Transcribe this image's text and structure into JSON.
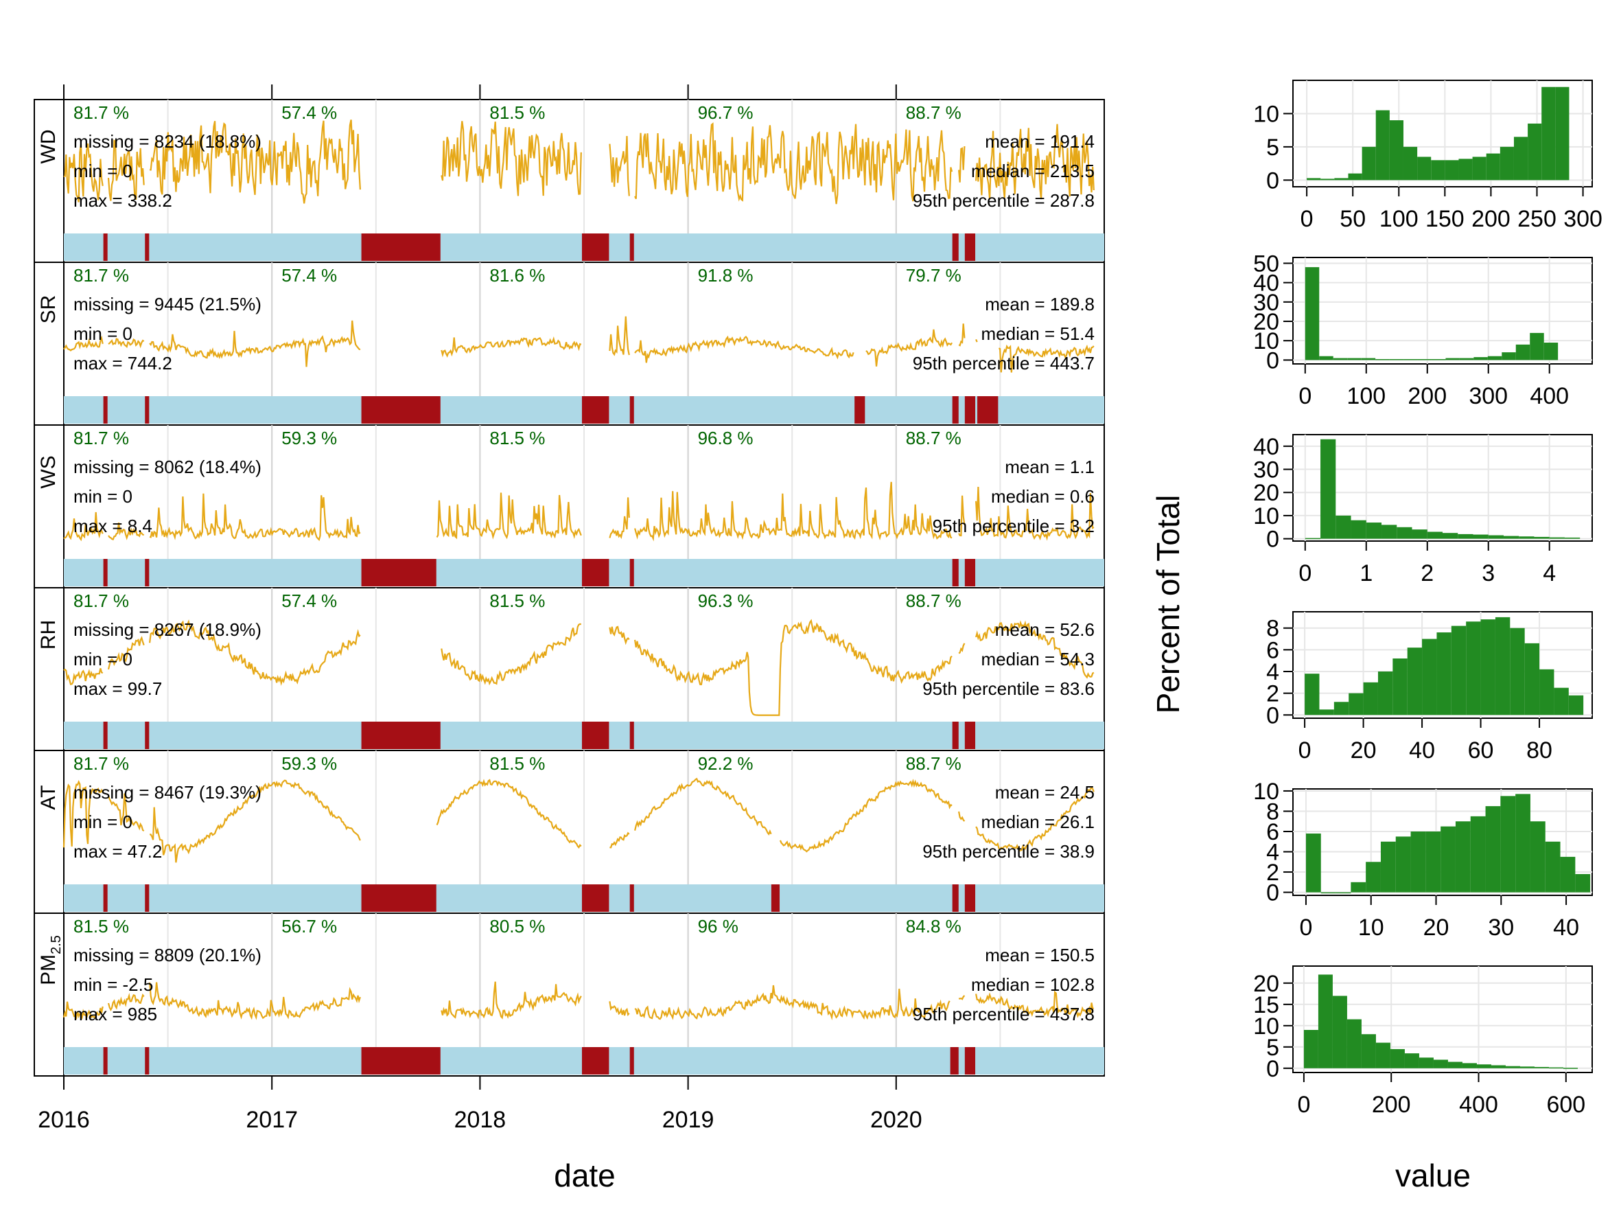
{
  "chart_data": {
    "type": "summary-plot",
    "left": {
      "x_ticks": [
        "2016",
        "2017",
        "2018",
        "2019",
        "2020"
      ],
      "x_range": [
        2016.0,
        2021.0
      ],
      "xlabel": "date",
      "panels": [
        {
          "label": "WD",
          "sub": "",
          "y_range": [
            0,
            338.2
          ],
          "summary": {
            "missing": "missing = 8234 (18.8%)",
            "min": "min = 0",
            "max": "max = 338.2",
            "mean": "mean = 191.4",
            "median": "median = 213.5",
            "p95": "95th percentile = 287.8"
          },
          "capture": [
            "81.7 %",
            "57.4 %",
            "81.5 %",
            "96.7 %",
            "88.7 %"
          ],
          "gaps": [
            [
              2016.19,
              2016.21
            ],
            [
              2016.39,
              2016.41
            ],
            [
              2017.43,
              2017.81
            ],
            [
              2018.49,
              2018.62
            ],
            [
              2018.72,
              2018.74
            ],
            [
              2020.27,
              2020.3
            ],
            [
              2020.33,
              2020.38
            ]
          ],
          "series_seed": 11,
          "style": "noisy",
          "level": 0.58,
          "amp": 0.42
        },
        {
          "label": "SR",
          "sub": "",
          "y_range": [
            0,
            744.2
          ],
          "summary": {
            "missing": "missing = 9445 (21.5%)",
            "min": "min = 0",
            "max": "max = 744.2",
            "mean": "mean = 189.8",
            "median": "median = 51.4",
            "p95": "95th percentile = 443.7"
          },
          "capture": [
            "81.7 %",
            "57.4 %",
            "81.6 %",
            "91.8 %",
            "79.7 %"
          ],
          "gaps": [
            [
              2016.19,
              2016.21
            ],
            [
              2016.39,
              2016.41
            ],
            [
              2017.43,
              2017.81
            ],
            [
              2018.49,
              2018.62
            ],
            [
              2018.72,
              2018.74
            ],
            [
              2019.8,
              2019.85
            ],
            [
              2020.27,
              2020.3
            ],
            [
              2020.33,
              2020.38
            ],
            [
              2020.39,
              2020.49
            ]
          ],
          "series_seed": 23,
          "style": "flat",
          "level": 0.38,
          "amp": 0.08
        },
        {
          "label": "WS",
          "sub": "",
          "y_range": [
            0,
            8.4
          ],
          "summary": {
            "missing": "missing = 8062 (18.4%)",
            "min": "min = 0",
            "max": "max = 8.4",
            "mean": "mean = 1.1",
            "median": "median = 0.6",
            "p95": "95th percentile = 3.2"
          },
          "capture": [
            "81.7 %",
            "59.3 %",
            "81.5 %",
            "96.8 %",
            "88.7 %"
          ],
          "gaps": [
            [
              2016.19,
              2016.21
            ],
            [
              2016.39,
              2016.41
            ],
            [
              2017.43,
              2017.79
            ],
            [
              2018.49,
              2018.62
            ],
            [
              2018.72,
              2018.74
            ],
            [
              2020.27,
              2020.3
            ],
            [
              2020.33,
              2020.38
            ]
          ],
          "series_seed": 37,
          "style": "spiky",
          "level": 0.12,
          "amp": 0.5
        },
        {
          "label": "RH",
          "sub": "",
          "y_range": [
            0,
            99.7
          ],
          "summary": {
            "missing": "missing = 8267 (18.9%)",
            "min": "min = 0",
            "max": "max = 99.7",
            "mean": "mean = 52.6",
            "median": "median = 54.3",
            "p95": "95th percentile = 83.6"
          },
          "capture": [
            "81.7 %",
            "57.4 %",
            "81.5 %",
            "96.3 %",
            "88.7 %"
          ],
          "gaps": [
            [
              2016.19,
              2016.21
            ],
            [
              2016.39,
              2016.41
            ],
            [
              2017.43,
              2017.81
            ],
            [
              2018.49,
              2018.62
            ],
            [
              2018.72,
              2018.74
            ],
            [
              2020.27,
              2020.3
            ],
            [
              2020.33,
              2020.38
            ]
          ],
          "series_seed": 41,
          "style": "wave",
          "level": 0.55,
          "amp": 0.22
        },
        {
          "label": "AT",
          "sub": "",
          "y_range": [
            0,
            47.2
          ],
          "summary": {
            "missing": "missing = 8467 (19.3%)",
            "min": "min = 0",
            "max": "max = 47.2",
            "mean": "mean = 24.5",
            "median": "median = 26.1",
            "p95": "95th percentile = 38.9"
          },
          "capture": [
            "81.7 %",
            "59.3 %",
            "81.5 %",
            "92.2 %",
            "88.7 %"
          ],
          "gaps": [
            [
              2016.19,
              2016.21
            ],
            [
              2016.39,
              2016.41
            ],
            [
              2017.43,
              2017.79
            ],
            [
              2018.49,
              2018.62
            ],
            [
              2018.72,
              2018.74
            ],
            [
              2019.4,
              2019.44
            ],
            [
              2020.27,
              2020.3
            ],
            [
              2020.33,
              2020.38
            ]
          ],
          "series_seed": 53,
          "style": "seasonal",
          "level": 0.55,
          "amp": 0.28
        },
        {
          "label": "PM",
          "sub": "2.5",
          "y_range": [
            0,
            985
          ],
          "summary": {
            "missing": "missing = 8809 (20.1%)",
            "min": "min = -2.5",
            "max": "max = 985",
            "mean": "mean = 150.5",
            "median": "median = 102.8",
            "p95": "95th percentile = 437.8"
          },
          "capture": [
            "81.5 %",
            "56.7 %",
            "80.5 %",
            "96 %",
            "84.8 %"
          ],
          "gaps": [
            [
              2016.19,
              2016.21
            ],
            [
              2016.39,
              2016.41
            ],
            [
              2017.43,
              2017.81
            ],
            [
              2018.49,
              2018.62
            ],
            [
              2018.72,
              2018.74
            ],
            [
              2020.26,
              2020.3
            ],
            [
              2020.33,
              2020.38
            ]
          ],
          "series_seed": 67,
          "style": "pm",
          "level": 0.2,
          "amp": 0.4
        }
      ]
    },
    "right": {
      "ylabel": "Percent of Total",
      "xlabel": "value",
      "histograms": [
        {
          "var": "WD",
          "x_range": [
            -15,
            310
          ],
          "x_ticks": [
            0,
            50,
            100,
            150,
            200,
            250,
            300
          ],
          "y_range": [
            -1,
            15
          ],
          "y_ticks": [
            0,
            5,
            10
          ],
          "bin_start": 0,
          "bin_width": 15,
          "values": [
            0.3,
            0.2,
            0.3,
            1,
            5,
            10.5,
            9,
            5,
            3.5,
            3,
            3,
            3.2,
            3.5,
            4,
            5,
            6.5,
            8.5,
            14,
            14
          ]
        },
        {
          "var": "SR",
          "x_range": [
            -20,
            470
          ],
          "x_ticks": [
            0,
            100,
            200,
            300,
            400
          ],
          "y_range": [
            -2,
            53
          ],
          "y_ticks": [
            0,
            10,
            20,
            30,
            40,
            50
          ],
          "bin_start": 0,
          "bin_width": 23,
          "values": [
            48,
            2,
            1,
            1,
            1,
            0.5,
            0.5,
            0.5,
            0.5,
            0.5,
            1,
            1,
            1.5,
            2,
            4,
            8,
            14,
            9
          ]
        },
        {
          "var": "WS",
          "x_range": [
            -0.2,
            4.7
          ],
          "x_ticks": [
            0,
            1,
            2,
            3,
            4
          ],
          "y_range": [
            -1,
            45
          ],
          "y_ticks": [
            0,
            10,
            20,
            30,
            40
          ],
          "bin_start": 0,
          "bin_width": 0.25,
          "values": [
            0.3,
            43,
            10,
            8,
            7,
            6,
            5,
            4,
            3,
            2.5,
            2,
            1.8,
            1.5,
            1.2,
            1,
            0.8,
            0.6,
            0.5
          ]
        },
        {
          "var": "RH",
          "x_range": [
            -4,
            98
          ],
          "x_ticks": [
            0,
            20,
            40,
            60,
            80
          ],
          "y_range": [
            -0.3,
            9.5
          ],
          "y_ticks": [
            0,
            2,
            4,
            6,
            8
          ],
          "bin_start": 0,
          "bin_width": 5,
          "values": [
            3.8,
            0.5,
            1.2,
            2,
            3,
            4,
            5.2,
            6.2,
            7,
            7.6,
            8.2,
            8.6,
            8.8,
            9,
            8,
            6.6,
            4.2,
            2.5,
            1.8
          ]
        },
        {
          "var": "AT",
          "x_range": [
            -2,
            44
          ],
          "x_ticks": [
            0,
            10,
            20,
            30,
            40
          ],
          "y_range": [
            -0.3,
            10.2
          ],
          "y_ticks": [
            0,
            2,
            4,
            6,
            8,
            10
          ],
          "bin_start": 0,
          "bin_width": 2.3,
          "values": [
            5.8,
            0,
            0,
            1,
            3,
            5,
            5.5,
            6,
            6,
            6.5,
            7,
            7.5,
            8.5,
            9.5,
            9.7,
            7,
            5,
            3.5,
            1.8
          ]
        },
        {
          "var": "PM2.5",
          "x_range": [
            -25,
            660
          ],
          "x_ticks": [
            0,
            200,
            400,
            600
          ],
          "y_range": [
            -1,
            24
          ],
          "y_ticks": [
            0,
            5,
            10,
            15,
            20
          ],
          "bin_start": 0,
          "bin_width": 33,
          "values": [
            9,
            22,
            17,
            11.5,
            8,
            6,
            4.5,
            3.5,
            2.5,
            2,
            1.5,
            1.2,
            0.9,
            0.7,
            0.5,
            0.4,
            0.3,
            0.2,
            0.1
          ]
        }
      ]
    },
    "colors": {
      "line": "#E6A817",
      "data_present": "#ADD8E6",
      "data_missing": "#A50F15",
      "capture_text": "#006400",
      "hist_fill": "#228B22",
      "grid": "#E6E6E6",
      "axis": "#000000"
    }
  }
}
